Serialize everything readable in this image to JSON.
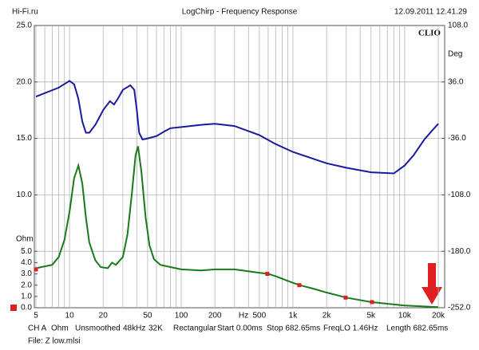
{
  "header": {
    "left": "Hi-Fi.ru",
    "title": "LogChirp - Frequency Response",
    "right": "12.09.2011 12.41.29"
  },
  "chart_data": {
    "type": "line",
    "brand": "CLIO",
    "y_label": "Ohm",
    "y2_label": "Deg",
    "x_unit": "Hz",
    "log_x": true,
    "xlim": [
      5,
      20000
    ],
    "xticks": [
      5,
      10,
      20,
      50,
      100,
      200,
      500,
      {
        "value": 1000,
        "label": "1k"
      },
      {
        "value": 2000,
        "label": "2k"
      },
      {
        "value": 5000,
        "label": "5k"
      },
      {
        "value": 10000,
        "label": "10k"
      },
      {
        "value": 20000,
        "label": "20k"
      }
    ],
    "x_minor_grid": [
      6,
      7,
      8,
      9,
      30,
      40,
      60,
      70,
      80,
      90,
      300,
      400,
      600,
      700,
      800,
      900,
      3000,
      4000,
      6000,
      7000,
      8000,
      9000
    ],
    "ylim": [
      0,
      25
    ],
    "yticks": [
      {
        "value": 0,
        "label": "0.0"
      },
      {
        "value": 1,
        "label": "1.0"
      },
      {
        "value": 2,
        "label": "2.0"
      },
      {
        "value": 3,
        "label": "3.0"
      },
      {
        "value": 4,
        "label": "4.0"
      },
      {
        "value": 5,
        "label": "5.0"
      },
      {
        "value": 10,
        "label": "10.0"
      },
      {
        "value": 15,
        "label": "15.0"
      },
      {
        "value": 20,
        "label": "20.0"
      },
      {
        "value": 25,
        "label": "25.0"
      }
    ],
    "y_grid": [
      5,
      10,
      15,
      20
    ],
    "y2lim": [
      -252,
      108
    ],
    "y2ticks": [
      {
        "value": 108,
        "label": "108.0"
      },
      {
        "value": 36,
        "label": "36.0"
      },
      {
        "value": -36,
        "label": "-36.0"
      },
      {
        "value": -108,
        "label": "-108.0"
      },
      {
        "value": -180,
        "label": "-180.0"
      },
      {
        "value": -252,
        "label": "-252.0"
      }
    ],
    "series": [
      {
        "color": "#1a7a1a",
        "axis": "y",
        "x": [
          5,
          7,
          8,
          9,
          10,
          11,
          12,
          13,
          14,
          15,
          17,
          19,
          22,
          24,
          26,
          30,
          33,
          36,
          39,
          41,
          44,
          48,
          52,
          57,
          65,
          80,
          100,
          150,
          200,
          300,
          500,
          600,
          700,
          1000,
          1150,
          1500,
          2000,
          3000,
          5000,
          10000,
          20000
        ],
        "values": [
          3.5,
          3.8,
          4.5,
          6,
          8.5,
          11.5,
          12.6,
          11,
          8,
          5.8,
          4.2,
          3.6,
          3.5,
          4.0,
          3.8,
          4.5,
          6.5,
          10,
          13.5,
          14.3,
          12,
          8,
          5.5,
          4.3,
          3.8,
          3.6,
          3.4,
          3.3,
          3.4,
          3.4,
          3.1,
          3.0,
          2.8,
          2.2,
          2.0,
          1.7,
          1.35,
          0.9,
          0.5,
          0.2,
          0.05
        ]
      },
      {
        "color": "#1a1aa0",
        "axis": "y2",
        "x": [
          5,
          8,
          10,
          11,
          12,
          13,
          14,
          15,
          17,
          20,
          23,
          25,
          27,
          30,
          35,
          38,
          40,
          42,
          45,
          50,
          60,
          70,
          80,
          100,
          150,
          200,
          300,
          500,
          700,
          1000,
          2000,
          3000,
          5000,
          8000,
          10000,
          12000,
          15000,
          18000,
          20000
        ],
        "values": [
          17.3,
          28.8,
          37.4,
          33.1,
          14.4,
          -14.4,
          -28.8,
          -28.8,
          -18.7,
          0,
          11.5,
          7.2,
          14.4,
          25.9,
          31.7,
          25.9,
          0,
          -28.8,
          -37.4,
          -36,
          -33.1,
          -27.4,
          -23,
          -21.6,
          -18.7,
          -17.3,
          -20.2,
          -31.7,
          -43.2,
          -53.3,
          -67.7,
          -73.4,
          -79.2,
          -80.6,
          -70.6,
          -57.6,
          -37.4,
          -24.5,
          -17.3
        ]
      }
    ],
    "markers": {
      "color": "#e02020",
      "x": [
        5,
        590,
        1140,
        2960,
        5100
      ],
      "values": [
        3.4,
        3.0,
        2.0,
        0.9,
        0.5
      ]
    }
  },
  "footer": {
    "items": [
      "CH A",
      "Ohm",
      "Unsmoothed",
      "48kHz",
      "32K",
      "Rectangular",
      "Start 0.00ms",
      "Stop 682.65ms",
      "FreqLO 1.46Hz",
      "Length 682.65ms"
    ],
    "file": "File: Z low.mlsi"
  }
}
